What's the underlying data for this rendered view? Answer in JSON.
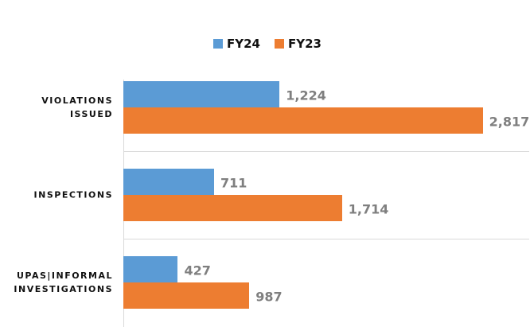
{
  "chart_data": {
    "type": "bar",
    "orientation": "horizontal",
    "categories": [
      "VIOLATIONS ISSUED",
      "INSPECTIONS",
      "UPAS|INFORMAL INVESTIGATIONS"
    ],
    "series": [
      {
        "name": "FY24",
        "color": "#5b9bd5",
        "values": [
          1224,
          711,
          427
        ],
        "value_labels": [
          "1,224",
          "711",
          "427"
        ]
      },
      {
        "name": "FY23",
        "color": "#ed7d31",
        "values": [
          2817,
          1714,
          987
        ],
        "value_labels": [
          "2,817",
          "1,714",
          "987"
        ]
      }
    ],
    "xlim": [
      0,
      3000
    ]
  }
}
